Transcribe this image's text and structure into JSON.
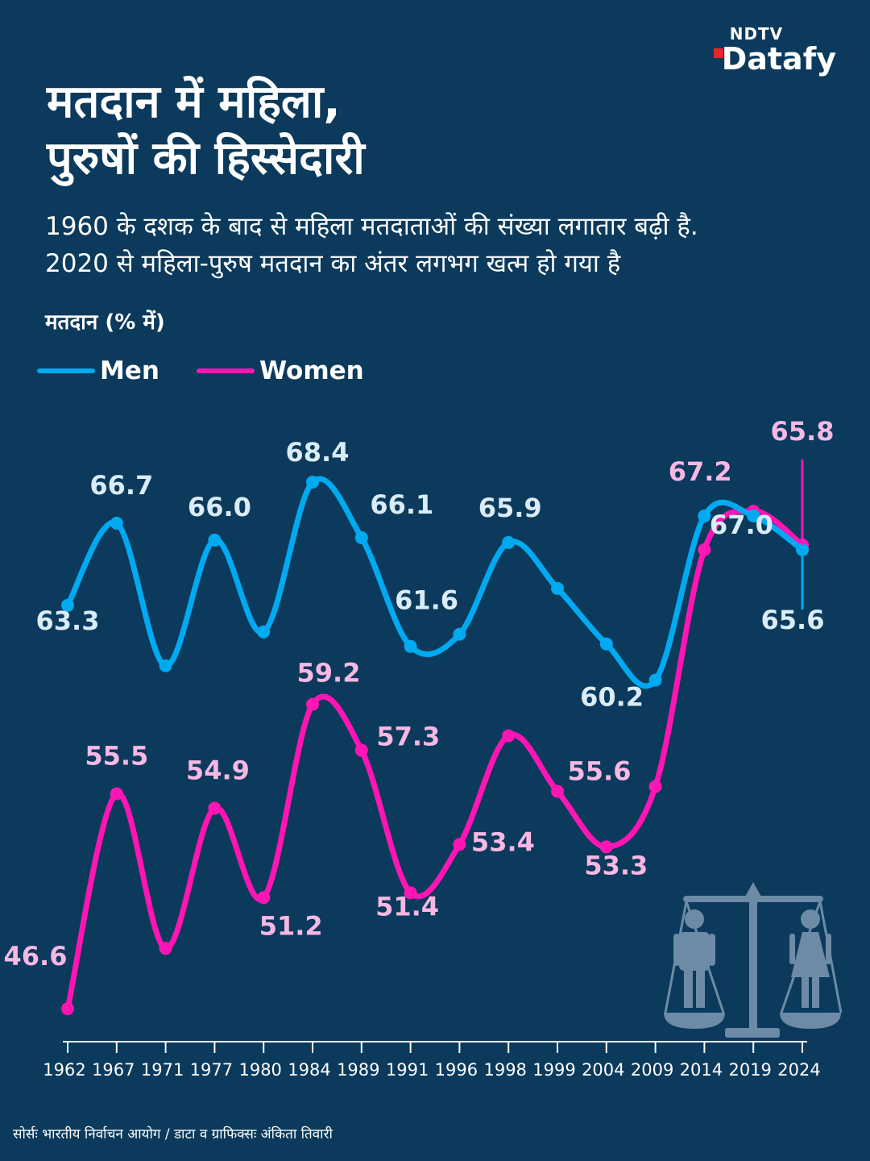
{
  "brand": {
    "top": "NDTV",
    "bottom": "Datafy"
  },
  "title_line1": "मतदान में महिला,",
  "title_line2": "पुरुषों की हिस्सेदारी",
  "subtitle_line1": "1960 के दशक के बाद से महिला मतदाताओं की संख्या लगातार बढ़ी है.",
  "subtitle_line2": "2020 से महिला-पुरुष मतदान का अंतर लगभग खत्म हो गया है",
  "source": "सोर्सः भारतीय निर्वाचन आयोग / डाटा व ग्राफिक्सः अंकिता तिवारी",
  "colors": {
    "background": "#0b3a5c",
    "men": "#00aaf0",
    "women": "#ff14b4",
    "men_label": "#d9ecf7",
    "women_label": "#f8b8e4",
    "axis": "#ffffff",
    "icon": "#6d8ba6"
  },
  "icons": {
    "illustration": "scale-balance-icon"
  },
  "chart_data": {
    "type": "line",
    "title": "मतदान में महिला, पुरुषों की हिस्सेदारी",
    "ylabel": "मतदान (% में)",
    "xlabel": "",
    "ylim": [
      45,
      70
    ],
    "grid": false,
    "legend_position": "top-left",
    "categories": [
      "1962",
      "1967",
      "1971",
      "1977",
      "1980",
      "1984",
      "1989",
      "1991",
      "1996",
      "1998",
      "1999",
      "2004",
      "2009",
      "2014",
      "2019",
      "2024"
    ],
    "series": [
      {
        "name": "Men",
        "values": [
          63.3,
          66.7,
          60.8,
          66.0,
          62.2,
          68.4,
          66.1,
          61.6,
          62.1,
          65.9,
          64.0,
          61.7,
          60.2,
          67.0,
          67.0,
          65.6
        ],
        "labels": [
          "63.3",
          "66.7",
          null,
          "66.0",
          null,
          "68.4",
          "66.1",
          "61.6",
          null,
          "65.9",
          null,
          null,
          "60.2",
          "67.0",
          null,
          "65.6"
        ]
      },
      {
        "name": "Women",
        "values": [
          46.6,
          55.5,
          49.1,
          54.9,
          51.2,
          59.2,
          57.3,
          51.4,
          53.4,
          57.9,
          55.6,
          53.3,
          55.8,
          65.6,
          67.2,
          65.8
        ],
        "labels": [
          "46.6",
          "55.5",
          null,
          "54.9",
          "51.2",
          "59.2",
          "57.3",
          "51.4",
          "53.4",
          null,
          "55.6",
          "53.3",
          null,
          null,
          "67.2",
          "65.8"
        ]
      }
    ]
  }
}
